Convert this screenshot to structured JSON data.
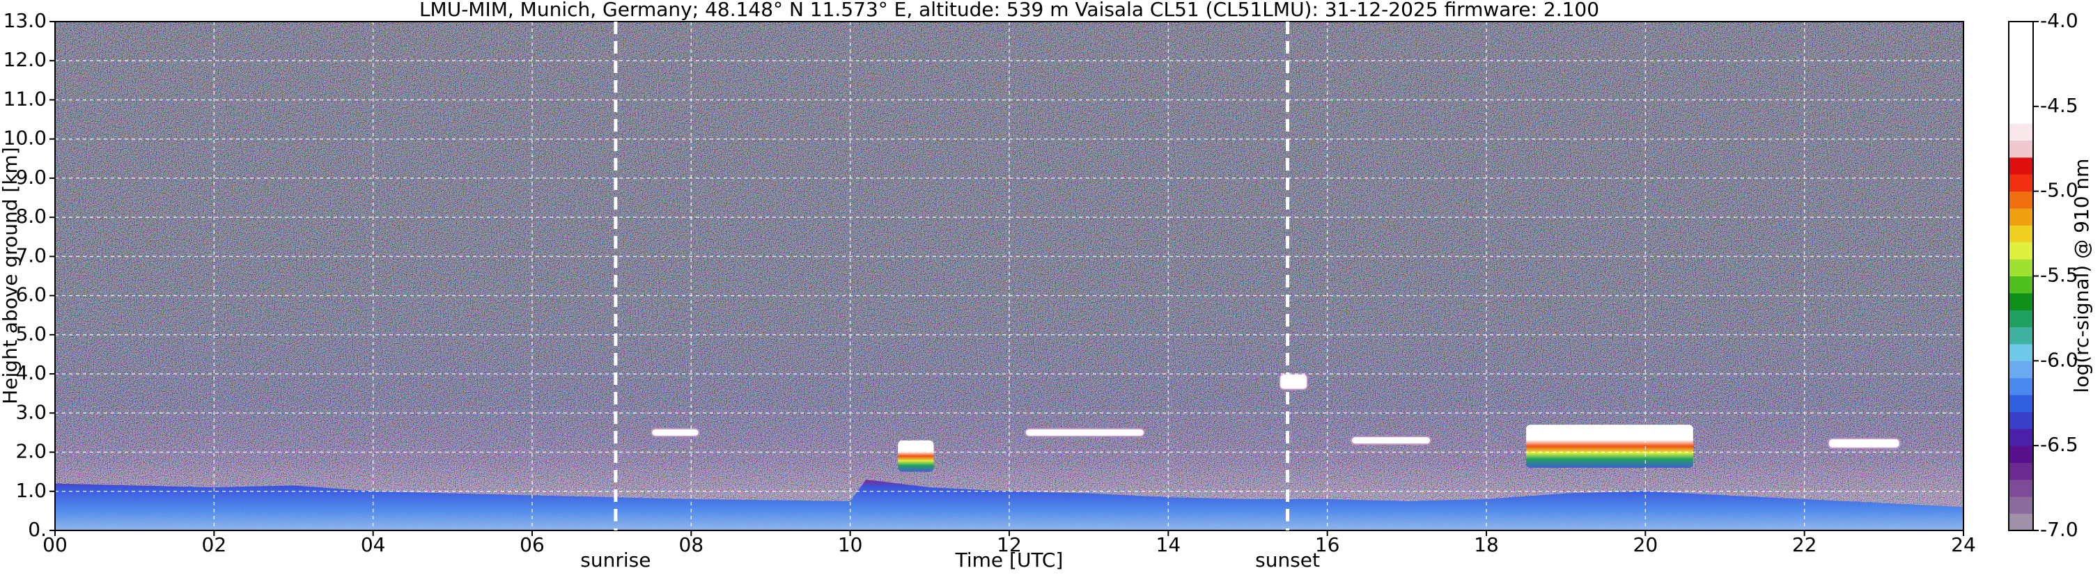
{
  "chart_data": {
    "type": "heatmap",
    "title": "LMU-MIM, Munich, Germany; 48.148° N 11.573° E, altitude: 539 m    Vaisala CL51 (CL51LMU): 31-12-2025    firmware: 2.100",
    "xlabel": "Time [UTC]",
    "ylabel": "Height above ground [km]",
    "xlim": [
      0,
      24
    ],
    "xticks": [
      {
        "value": 0,
        "label": "00"
      },
      {
        "value": 2,
        "label": "02"
      },
      {
        "value": 4,
        "label": "04"
      },
      {
        "value": 6,
        "label": "06"
      },
      {
        "value": 8,
        "label": "08"
      },
      10,
      12,
      14,
      16,
      18,
      20,
      22,
      24
    ],
    "ylim": [
      0,
      13
    ],
    "yticks": [
      {
        "value": 0,
        "label": "0."
      },
      {
        "value": 1,
        "label": "1.0"
      },
      {
        "value": 2,
        "label": "2.0"
      },
      {
        "value": 3,
        "label": "3.0"
      },
      {
        "value": 4,
        "label": "4.0"
      },
      {
        "value": 5,
        "label": "5.0"
      },
      {
        "value": 6,
        "label": "6.0"
      },
      {
        "value": 7,
        "label": "7.0"
      },
      {
        "value": 8,
        "label": "8.0"
      },
      {
        "value": 9,
        "label": "9.0"
      },
      {
        "value": 10,
        "label": "10.0"
      },
      {
        "value": 11,
        "label": "11.0"
      },
      {
        "value": 12,
        "label": "12.0"
      },
      {
        "value": 13,
        "label": "13.0"
      }
    ],
    "grid": true,
    "annotations": [
      {
        "label": "sunrise",
        "x": 7.05
      },
      {
        "label": "sunset",
        "x": 15.5
      }
    ],
    "boundary_layer": {
      "x": [
        0,
        2,
        3,
        4,
        6,
        8,
        10,
        10.2,
        11,
        12,
        13,
        14,
        15,
        16,
        17,
        18,
        19,
        20,
        21,
        22,
        23,
        24
      ],
      "top": [
        1.2,
        1.1,
        1.15,
        1.0,
        0.9,
        0.8,
        0.75,
        1.3,
        1.1,
        1.0,
        0.95,
        0.85,
        0.8,
        0.8,
        0.75,
        0.8,
        0.95,
        1.0,
        0.9,
        0.8,
        0.7,
        0.6
      ]
    },
    "clouds": [
      {
        "start": 7.5,
        "end": 8.1,
        "base": 2.4,
        "top": 2.6
      },
      {
        "start": 10.6,
        "end": 11.05,
        "base": 1.5,
        "top": 2.3
      },
      {
        "start": 12.2,
        "end": 13.7,
        "base": 2.4,
        "top": 2.6
      },
      {
        "start": 15.4,
        "end": 15.75,
        "base": 3.6,
        "top": 4.0
      },
      {
        "start": 16.3,
        "end": 17.3,
        "base": 2.2,
        "top": 2.4
      },
      {
        "start": 18.5,
        "end": 20.6,
        "base": 1.6,
        "top": 2.7
      },
      {
        "start": 22.3,
        "end": 23.2,
        "base": 2.1,
        "top": 2.35
      }
    ],
    "colorbar": {
      "label": "log(rc-signal) @ 910 nm",
      "lim": [
        -7,
        -4
      ],
      "ticks": [
        {
          "value": -4,
          "label": "-4.0"
        },
        -4.5,
        {
          "value": -5,
          "label": "-5.0"
        },
        -5.5,
        {
          "value": -6,
          "label": "-6.0"
        },
        -6.5,
        {
          "value": -7,
          "label": "-7.0"
        }
      ],
      "colors": [
        "#a090a8",
        "#8c6c9c",
        "#7c4c98",
        "#6a2a90",
        "#58108c",
        "#4a20a8",
        "#3a40c8",
        "#3060e0",
        "#4a8af0",
        "#6aaaf0",
        "#70c8e8",
        "#40b0a0",
        "#20a060",
        "#10901a",
        "#50c020",
        "#a0e030",
        "#e0f040",
        "#f0d020",
        "#f0a010",
        "#f07010",
        "#f03010",
        "#e01010",
        "#f0c8d0",
        "#f8e8ec",
        "#ffffff",
        "#ffffff",
        "#ffffff",
        "#ffffff",
        "#ffffff",
        "#ffffff"
      ]
    }
  }
}
